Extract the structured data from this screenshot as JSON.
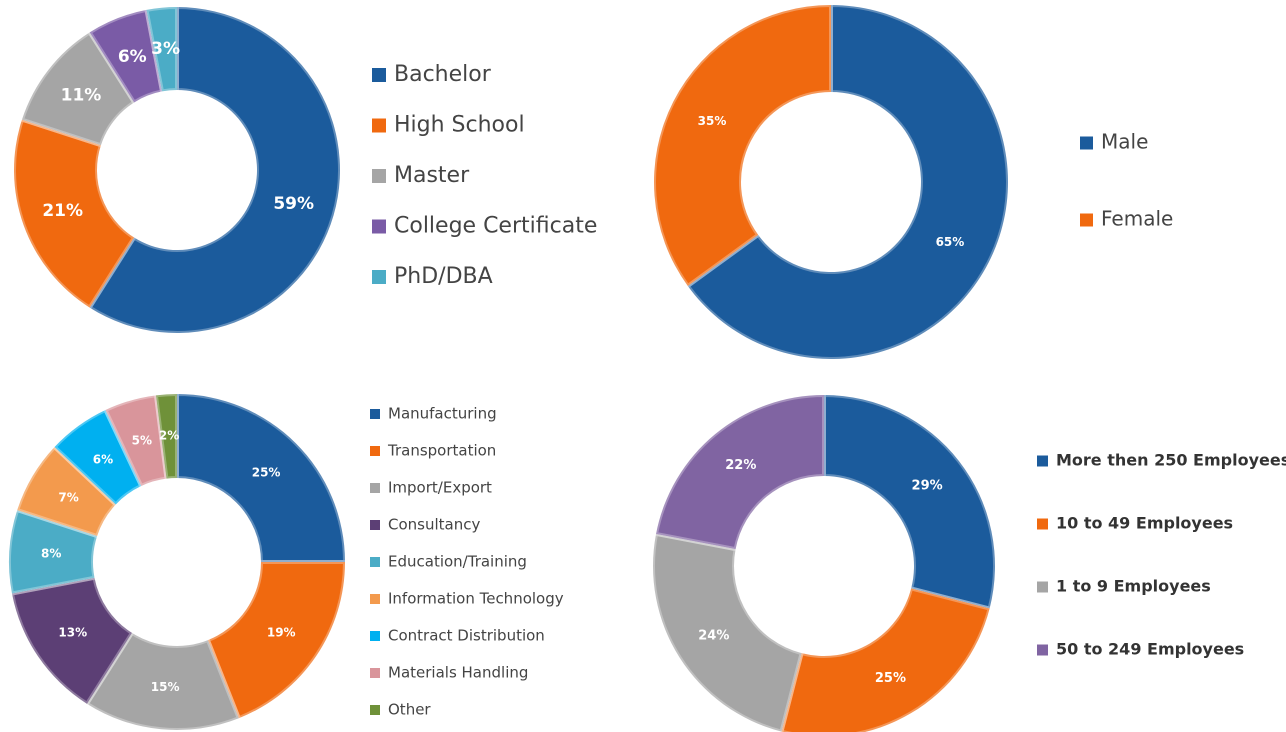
{
  "chart_data": [
    {
      "type": "pie",
      "categories": [
        "Bachelor",
        "High School",
        "Master",
        "College Certificate",
        "PhD/DBA"
      ],
      "values": [
        59,
        21,
        11,
        6,
        3
      ],
      "value_labels": [
        "59%",
        "21%",
        "11%",
        "6%",
        "3%"
      ],
      "colors": [
        "#1b5b9c",
        "#f0690f",
        "#a5a5a5",
        "#7a5ba6",
        "#4bacc6"
      ]
    },
    {
      "type": "pie",
      "categories": [
        "Male",
        "Female"
      ],
      "values": [
        65,
        35
      ],
      "value_labels": [
        "65%",
        "35%"
      ],
      "colors": [
        "#1b5b9c",
        "#f0690f"
      ]
    },
    {
      "type": "pie",
      "categories": [
        "Manufacturing",
        "Transportation",
        "Import/Export",
        "Consultancy",
        "Education/Training",
        "Information Technology",
        "Contract Distribution",
        "Materials Handling",
        "Other"
      ],
      "values": [
        25,
        19,
        15,
        13,
        8,
        7,
        6,
        5,
        2
      ],
      "value_labels": [
        "25%",
        "19%",
        "15%",
        "13%",
        "8%",
        "7%",
        "6%",
        "5%",
        "2%"
      ],
      "colors": [
        "#1b5b9c",
        "#f0690f",
        "#a5a5a5",
        "#5c3f75",
        "#4bacc6",
        "#f39a4d",
        "#00b0f0",
        "#d9959b",
        "#6f9139"
      ]
    },
    {
      "type": "pie",
      "categories": [
        "More then 250 Employees",
        "10 to 49 Employees",
        "1 to 9 Employees",
        "50 to 249 Employees"
      ],
      "values": [
        29,
        25,
        24,
        22
      ],
      "value_labels": [
        "29%",
        "25%",
        "24%",
        "22%"
      ],
      "colors": [
        "#1b5b9c",
        "#f0690f",
        "#a5a5a5",
        "#8064a2"
      ]
    }
  ]
}
